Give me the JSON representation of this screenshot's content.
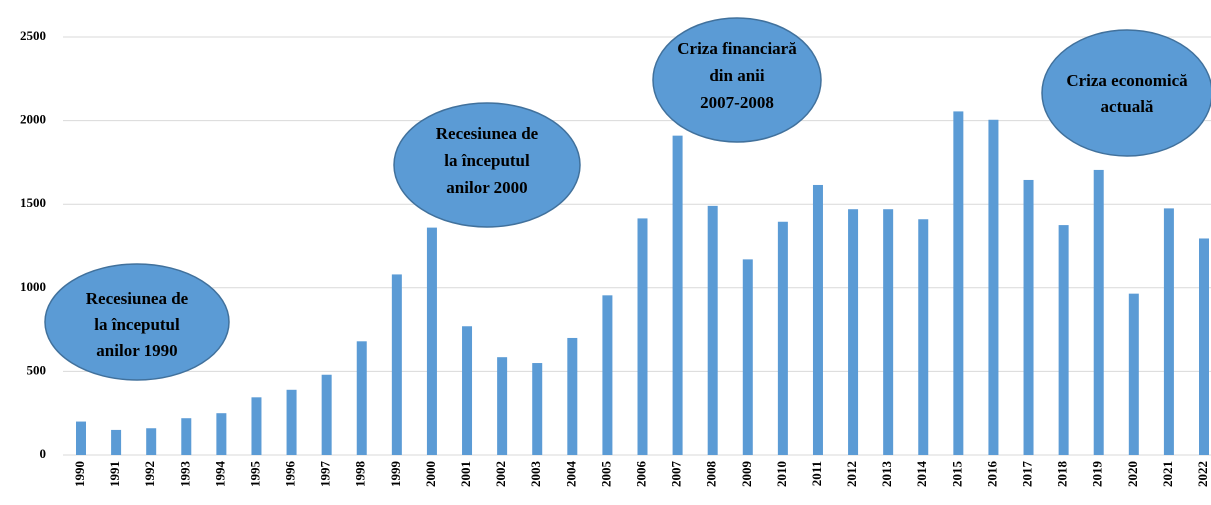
{
  "chart_data": {
    "type": "bar",
    "categories": [
      "1990",
      "1991",
      "1992",
      "1993",
      "1994",
      "1995",
      "1996",
      "1997",
      "1998",
      "1999",
      "2000",
      "2001",
      "2002",
      "2003",
      "2004",
      "2005",
      "2006",
      "2007",
      "2008",
      "2009",
      "2010",
      "2011",
      "2012",
      "2013",
      "2014",
      "2015",
      "2016",
      "2017",
      "2018",
      "2019",
      "2020",
      "2021",
      "2022"
    ],
    "values": [
      200,
      150,
      160,
      220,
      250,
      345,
      390,
      480,
      680,
      1080,
      1360,
      770,
      585,
      550,
      700,
      955,
      1415,
      1910,
      1490,
      1170,
      1395,
      1615,
      1470,
      1470,
      1410,
      2055,
      2005,
      1645,
      1375,
      1705,
      965,
      1475,
      1295
    ],
    "color": "#5b9bd5",
    "ylim": [
      0,
      2500
    ],
    "yticks": [
      0,
      500,
      1000,
      1500,
      2000,
      2500
    ],
    "grid": true,
    "annotations": [
      {
        "lines": [
          "Recesiunea de",
          "la începutul",
          "anilor 1990"
        ]
      },
      {
        "lines": [
          "Recesiunea de",
          "la începutul",
          "anilor 2000"
        ]
      },
      {
        "lines": [
          "Criza financiară",
          "din anii",
          "2007-2008"
        ]
      },
      {
        "lines": [
          "Criza economică",
          "actuală"
        ]
      }
    ]
  }
}
